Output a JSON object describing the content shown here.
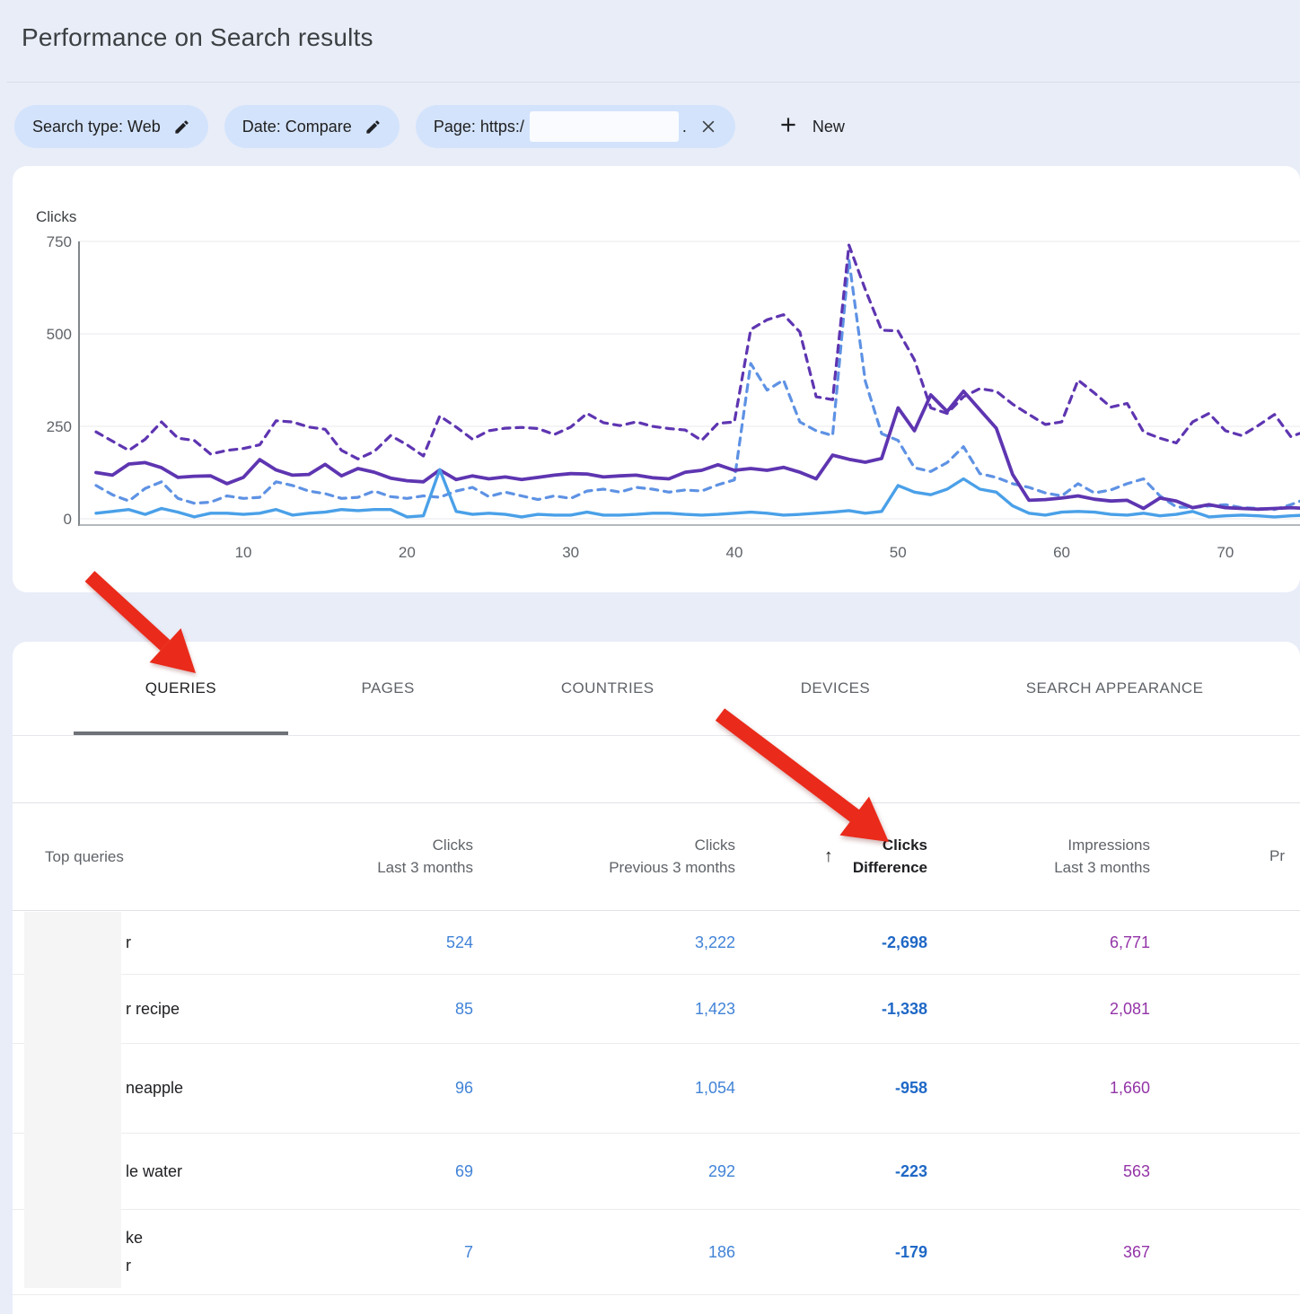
{
  "header": {
    "title": "Performance on Search results"
  },
  "filters": {
    "chips": [
      {
        "name": "search-type",
        "label": "Search type: Web",
        "icon": "edit",
        "redacted": false,
        "suffix": ""
      },
      {
        "name": "date",
        "label": "Date: Compare",
        "icon": "edit",
        "redacted": false,
        "suffix": ""
      },
      {
        "name": "page",
        "label": "Page: https:/",
        "icon": "close",
        "redacted": true,
        "suffix": "."
      }
    ],
    "new_label": "New"
  },
  "chart_data": {
    "type": "line",
    "title": "",
    "ylabel": "Clicks",
    "ylim": [
      0,
      750
    ],
    "yticks": [
      0,
      250,
      500,
      750
    ],
    "xticks": [
      10,
      20,
      30,
      40,
      50,
      60,
      70
    ],
    "x_range": [
      1,
      75
    ],
    "grid": true,
    "legend_position": "none",
    "series": [
      {
        "name": "Clicks - previous 3 months",
        "style": "dashed",
        "color": "#5e92e4",
        "width": 3.2,
        "values": [
          90,
          65,
          48,
          82,
          100,
          55,
          42,
          45,
          62,
          55,
          58,
          100,
          90,
          75,
          68,
          55,
          58,
          75,
          60,
          55,
          62,
          58,
          75,
          85,
          60,
          72,
          62,
          52,
          62,
          55,
          75,
          80,
          72,
          85,
          80,
          72,
          78,
          75,
          92,
          105,
          420,
          348,
          375,
          262,
          238,
          225,
          700,
          372,
          230,
          212,
          138,
          128,
          152,
          195,
          122,
          112,
          95,
          85,
          70,
          62,
          95,
          70,
          78,
          95,
          108,
          62,
          32,
          30,
          35,
          38,
          30,
          28,
          25,
          38,
          55
        ]
      },
      {
        "name": "Impressions - previous 3 months",
        "style": "dashed",
        "color": "#5e35b1",
        "width": 3.2,
        "values": [
          235,
          210,
          185,
          215,
          262,
          218,
          212,
          175,
          185,
          190,
          200,
          265,
          262,
          248,
          242,
          185,
          162,
          182,
          225,
          200,
          170,
          278,
          248,
          215,
          238,
          245,
          247,
          244,
          228,
          248,
          285,
          260,
          252,
          262,
          250,
          244,
          240,
          212,
          258,
          262,
          512,
          538,
          552,
          505,
          330,
          322,
          740,
          620,
          510,
          508,
          430,
          300,
          285,
          330,
          352,
          345,
          310,
          282,
          255,
          262,
          375,
          340,
          302,
          312,
          235,
          218,
          205,
          262,
          285,
          238,
          225,
          252,
          282,
          222,
          238
        ]
      },
      {
        "name": "Impressions - last 3 months",
        "style": "solid",
        "color": "#5e35b1",
        "width": 3.8,
        "values": [
          125,
          118,
          148,
          152,
          138,
          112,
          115,
          116,
          95,
          112,
          160,
          132,
          118,
          120,
          147,
          116,
          136,
          126,
          110,
          103,
          100,
          132,
          106,
          116,
          108,
          113,
          106,
          112,
          118,
          122,
          121,
          113,
          116,
          118,
          111,
          108,
          126,
          131,
          146,
          131,
          136,
          131,
          139,
          126,
          108,
          172,
          161,
          153,
          163,
          300,
          238,
          335,
          290,
          345,
          295,
          245,
          120,
          50,
          52,
          56,
          62,
          53,
          48,
          50,
          28,
          56,
          48,
          30,
          38,
          30,
          28,
          26,
          28,
          30,
          28
        ]
      },
      {
        "name": "Clicks - last 3 months",
        "style": "solid",
        "color": "#4aa0e8",
        "width": 3.4,
        "values": [
          15,
          20,
          25,
          12,
          28,
          18,
          5,
          15,
          15,
          12,
          15,
          25,
          10,
          15,
          18,
          25,
          22,
          25,
          25,
          5,
          8,
          133,
          20,
          12,
          15,
          12,
          5,
          12,
          10,
          10,
          18,
          10,
          10,
          12,
          15,
          15,
          12,
          10,
          12,
          15,
          18,
          15,
          10,
          12,
          15,
          18,
          22,
          15,
          20,
          90,
          72,
          65,
          80,
          108,
          80,
          72,
          35,
          15,
          10,
          18,
          20,
          18,
          12,
          10,
          15,
          8,
          12,
          20,
          5,
          8,
          10,
          8,
          5,
          8,
          10
        ]
      }
    ]
  },
  "tabs": [
    {
      "label": "QUERIES",
      "active": true
    },
    {
      "label": "PAGES",
      "active": false
    },
    {
      "label": "COUNTRIES",
      "active": false
    },
    {
      "label": "DEVICES",
      "active": false
    },
    {
      "label": "SEARCH APPEARANCE",
      "active": false
    }
  ],
  "table": {
    "query_header": "Top queries",
    "sort_arrow": "↑",
    "columns": [
      {
        "line1": "Clicks",
        "line2": "Last 3 months",
        "sorted": false,
        "bold": false,
        "partial": false
      },
      {
        "line1": "Clicks",
        "line2": "Previous 3 months",
        "sorted": false,
        "bold": false,
        "partial": false
      },
      {
        "line1": "Clicks",
        "line2": "Difference",
        "sorted": true,
        "bold": true,
        "partial": false
      },
      {
        "line1": "Impressions",
        "line2": "Last 3 months",
        "sorted": false,
        "bold": false,
        "partial": false
      },
      {
        "line1": "",
        "line2": "Pr",
        "sorted": false,
        "bold": false,
        "partial": true
      }
    ],
    "value_colors": {
      "clicks": "#4183d7",
      "difference": "#1f68c6",
      "impressions": "#9334a7"
    },
    "rows": [
      {
        "query_lines": [
          "r"
        ],
        "clicks": "524",
        "previous": "3,222",
        "difference": "-2,698",
        "impressions": "6,771"
      },
      {
        "query_lines": [
          "r recipe"
        ],
        "clicks": "85",
        "previous": "1,423",
        "difference": "-1,338",
        "impressions": "2,081"
      },
      {
        "query_lines": [
          "neapple"
        ],
        "clicks": "96",
        "previous": "1,054",
        "difference": "-958",
        "impressions": "1,660"
      },
      {
        "query_lines": [
          "le water"
        ],
        "clicks": "69",
        "previous": "292",
        "difference": "-223",
        "impressions": "563"
      },
      {
        "query_lines": [
          "ke",
          "r"
        ],
        "clicks": "7",
        "previous": "186",
        "difference": "-179",
        "impressions": "367"
      }
    ]
  },
  "annotations": {
    "arrow_color": "#ea2a1a"
  }
}
